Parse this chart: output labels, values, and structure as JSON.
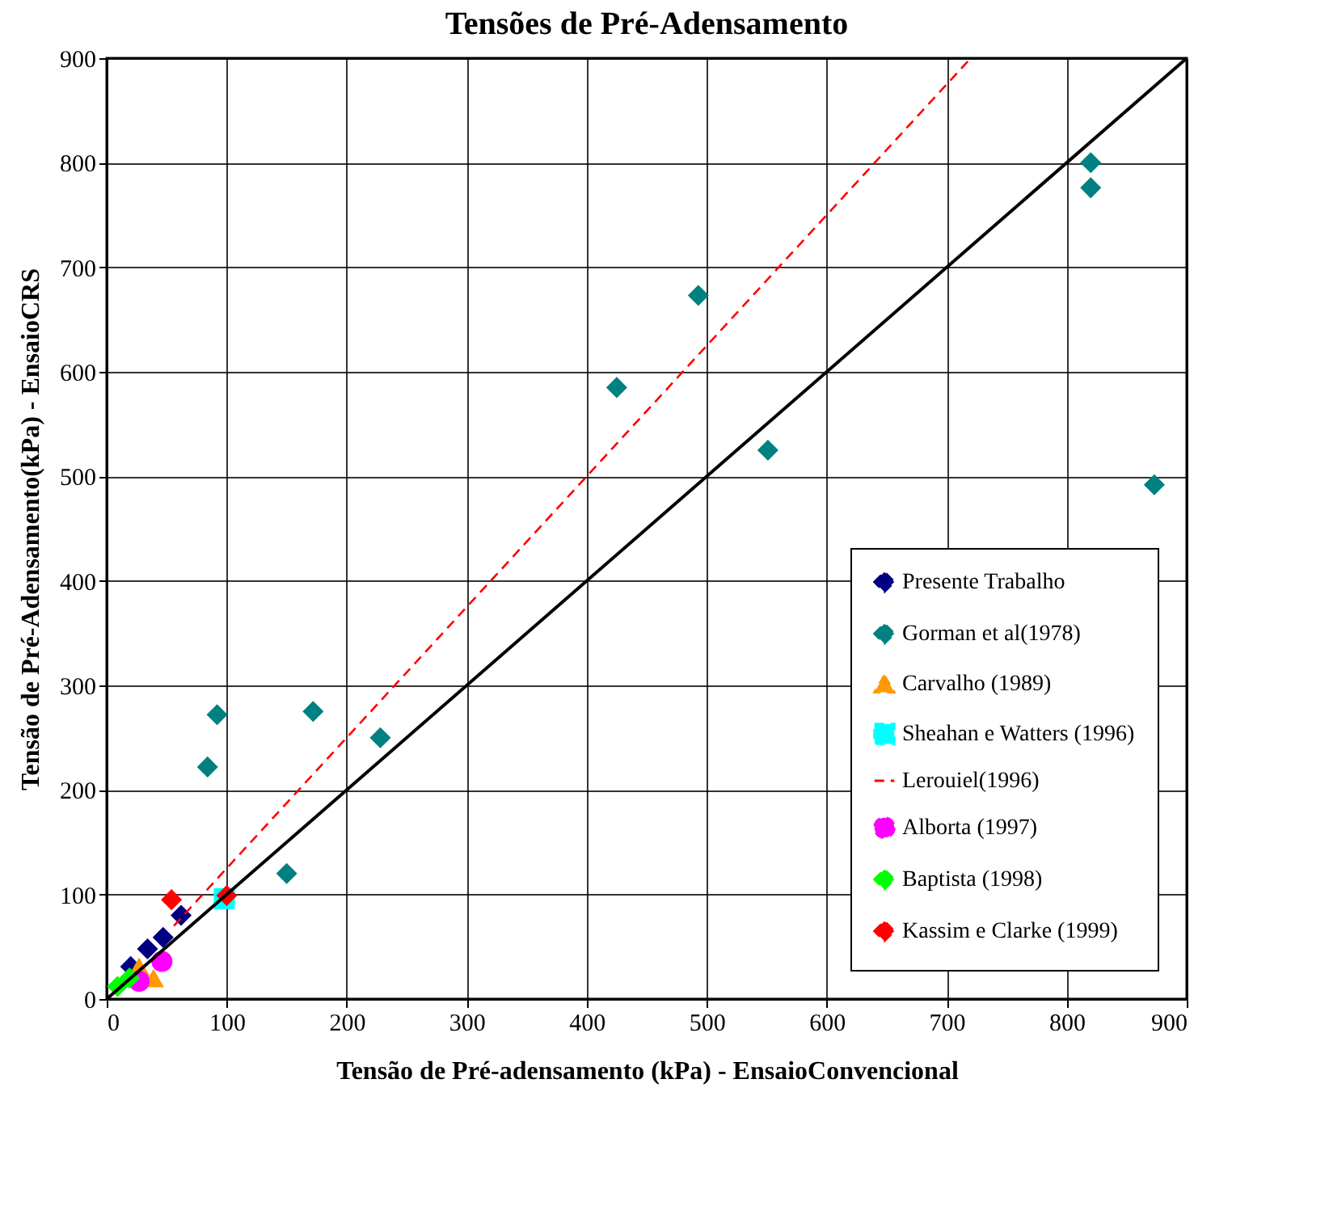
{
  "chart_data": {
    "type": "scatter",
    "title": "Tensões de Pré-Adensamento",
    "xlabel": "Tensão de Pré-adensamento (kPa) - EnsaioConvencional",
    "ylabel": "Tensão de Pré-Adensamento(kPa) - EnsaioCRS",
    "xlim": [
      0,
      900
    ],
    "ylim": [
      0,
      900
    ],
    "xticks": [
      0,
      100,
      200,
      300,
      400,
      500,
      600,
      700,
      800,
      900
    ],
    "yticks": [
      0,
      100,
      200,
      300,
      400,
      500,
      600,
      700,
      800,
      900
    ],
    "grid": true,
    "legend": "bottom right",
    "series": [
      {
        "name": "Presente Trabalho",
        "marker": "diamond",
        "color": "#000080",
        "x": [
          62,
          47,
          34,
          20
        ],
        "values": [
          80,
          59,
          48,
          31
        ]
      },
      {
        "name": "Gorman et al(1978)",
        "marker": "diamond",
        "color": "#008080",
        "x": [
          425,
          493,
          551,
          820,
          820,
          873,
          92,
          172,
          228,
          84,
          150
        ],
        "values": [
          585,
          673,
          525,
          800,
          776,
          492,
          272,
          275,
          250,
          222,
          120
        ]
      },
      {
        "name": "Carvalho (1989)",
        "marker": "triangle",
        "color": "#ff9900",
        "x": [
          27,
          39
        ],
        "values": [
          31,
          20
        ]
      },
      {
        "name": "Sheahan e Watters (1996)",
        "marker": "square",
        "color": "#00ffff",
        "x": [
          98
        ],
        "values": [
          96
        ]
      },
      {
        "name": "Lerouiel(1996)",
        "type": "line",
        "line_style": "dashed",
        "color": "#ff0000",
        "x": [
          56,
          720
        ],
        "values": [
          70,
          900
        ]
      },
      {
        "name": "Alborta (1997)",
        "marker": "circle",
        "color": "#ff00ff",
        "x": [
          46,
          27
        ],
        "values": [
          36,
          17
        ]
      },
      {
        "name": "Baptista (1998)",
        "marker": "diamond",
        "color": "#00ff00",
        "x": [
          9,
          19
        ],
        "values": [
          12,
          20
        ]
      },
      {
        "name": "Kassim e Clarke (1999)",
        "marker": "diamond",
        "color": "#ff0000",
        "x": [
          54,
          100
        ],
        "values": [
          95,
          99
        ]
      },
      {
        "type": "line",
        "line_style": "solid",
        "color": "#000000",
        "x": [
          0,
          900
        ],
        "values": [
          0,
          900
        ]
      }
    ]
  }
}
